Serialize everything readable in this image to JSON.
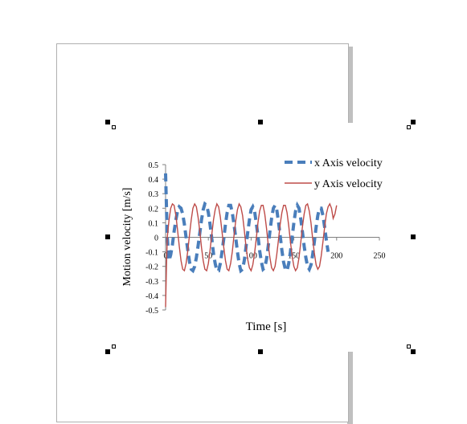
{
  "chart_data": {
    "type": "line",
    "title": "",
    "xlabel": "Time [s]",
    "ylabel": "Motion velocity [m/s]",
    "xlim": [
      0,
      250
    ],
    "ylim": [
      -0.5,
      0.5
    ],
    "xticks": [
      0,
      50,
      100,
      150,
      200,
      250
    ],
    "yticks": [
      0.5,
      0.4,
      0.3,
      0.2,
      0.1,
      0,
      -0.1,
      -0.2,
      -0.3,
      -0.4,
      -0.5
    ],
    "ytick_labels": [
      "0.5",
      "0.4",
      "0.3",
      "0.2",
      "0.1",
      "0",
      "-0.1",
      "-0.2",
      "-0.3",
      "-0.4",
      "-0.5"
    ],
    "legend_position": "top-right",
    "grid": false,
    "series": [
      {
        "name": "x Axis velocity",
        "color": "#4a7ebb",
        "style": "dashed",
        "x": [
          0,
          2,
          4,
          6,
          8,
          10,
          12,
          14,
          16,
          18,
          20,
          22,
          24,
          26,
          28,
          30,
          32,
          34,
          36,
          38,
          40,
          42,
          44,
          46,
          48,
          50,
          52,
          54,
          56,
          58,
          60,
          62,
          64,
          66,
          68,
          70,
          72,
          74,
          76,
          78,
          80,
          82,
          84,
          86,
          88,
          90,
          92,
          94,
          96,
          98,
          100,
          102,
          104,
          106,
          108,
          110,
          112,
          114,
          116,
          118,
          120,
          122,
          124,
          126,
          128,
          130,
          132,
          134,
          136,
          138,
          140,
          142,
          144,
          146,
          148,
          150,
          152,
          154,
          156,
          158,
          160,
          162,
          164,
          166,
          168,
          170,
          172,
          174,
          176,
          178,
          180,
          182,
          184,
          186,
          188,
          190
        ],
        "y": [
          0.44,
          0.0,
          -0.16,
          -0.12,
          -0.05,
          0.04,
          0.12,
          0.18,
          0.21,
          0.2,
          0.16,
          0.09,
          0.0,
          -0.09,
          -0.17,
          -0.22,
          -0.23,
          -0.2,
          -0.14,
          -0.06,
          0.03,
          0.12,
          0.19,
          0.23,
          0.22,
          0.17,
          0.09,
          -0.01,
          -0.11,
          -0.18,
          -0.23,
          -0.23,
          -0.18,
          -0.1,
          -0.01,
          0.09,
          0.17,
          0.22,
          0.22,
          0.17,
          0.09,
          0.0,
          -0.1,
          -0.18,
          -0.23,
          -0.22,
          -0.16,
          -0.07,
          0.03,
          0.12,
          0.19,
          0.21,
          0.18,
          0.1,
          0.01,
          -0.09,
          -0.17,
          -0.22,
          -0.21,
          -0.15,
          -0.06,
          0.04,
          0.13,
          0.2,
          0.22,
          0.19,
          0.11,
          0.01,
          -0.09,
          -0.17,
          -0.22,
          -0.23,
          -0.18,
          -0.1,
          0.0,
          0.1,
          0.18,
          0.22,
          0.2,
          0.13,
          0.04,
          -0.06,
          -0.14,
          -0.2,
          -0.22,
          -0.19,
          -0.12,
          -0.03,
          0.07,
          0.15,
          0.2,
          0.2,
          0.15,
          0.07,
          -0.02,
          -0.1
        ]
      },
      {
        "name": "y Axis velocity",
        "color": "#be4b48",
        "style": "solid",
        "x": [
          0,
          1,
          2,
          4,
          6,
          8,
          10,
          12,
          14,
          16,
          18,
          20,
          22,
          24,
          26,
          28,
          30,
          32,
          34,
          36,
          38,
          40,
          42,
          44,
          46,
          48,
          50,
          52,
          54,
          56,
          58,
          60,
          62,
          64,
          66,
          68,
          70,
          72,
          74,
          76,
          78,
          80,
          82,
          84,
          86,
          88,
          90,
          92,
          94,
          96,
          98,
          100,
          102,
          104,
          106,
          108,
          110,
          112,
          114,
          116,
          118,
          120,
          122,
          124,
          126,
          128,
          130,
          132,
          134,
          136,
          138,
          140,
          142,
          144,
          146,
          148,
          150,
          152,
          154,
          156,
          158,
          160,
          162,
          164,
          166,
          168,
          170,
          172,
          174,
          176,
          178,
          180,
          182,
          184,
          186,
          188,
          190,
          192,
          194,
          196,
          198,
          200
        ],
        "y": [
          -0.48,
          -0.2,
          0.0,
          0.12,
          0.2,
          0.23,
          0.22,
          0.15,
          0.05,
          -0.06,
          -0.16,
          -0.22,
          -0.23,
          -0.18,
          -0.09,
          0.02,
          0.12,
          0.2,
          0.23,
          0.21,
          0.14,
          0.04,
          -0.07,
          -0.16,
          -0.22,
          -0.23,
          -0.18,
          -0.09,
          0.02,
          0.12,
          0.19,
          0.23,
          0.21,
          0.14,
          0.04,
          -0.07,
          -0.16,
          -0.22,
          -0.23,
          -0.18,
          -0.1,
          0.01,
          0.11,
          0.19,
          0.23,
          0.21,
          0.15,
          0.05,
          -0.06,
          -0.15,
          -0.21,
          -0.23,
          -0.19,
          -0.11,
          -0.01,
          0.1,
          0.18,
          0.22,
          0.22,
          0.16,
          0.06,
          -0.05,
          -0.14,
          -0.21,
          -0.23,
          -0.2,
          -0.12,
          -0.02,
          0.09,
          0.17,
          0.22,
          0.22,
          0.17,
          0.08,
          -0.03,
          -0.13,
          -0.2,
          -0.23,
          -0.21,
          -0.14,
          -0.04,
          0.07,
          0.16,
          0.22,
          0.23,
          0.18,
          0.1,
          -0.01,
          -0.11,
          -0.19,
          -0.22,
          -0.2,
          -0.13,
          -0.03,
          0.07,
          0.16,
          0.21,
          0.23,
          0.2,
          0.13,
          0.16,
          0.22
        ]
      }
    ]
  }
}
